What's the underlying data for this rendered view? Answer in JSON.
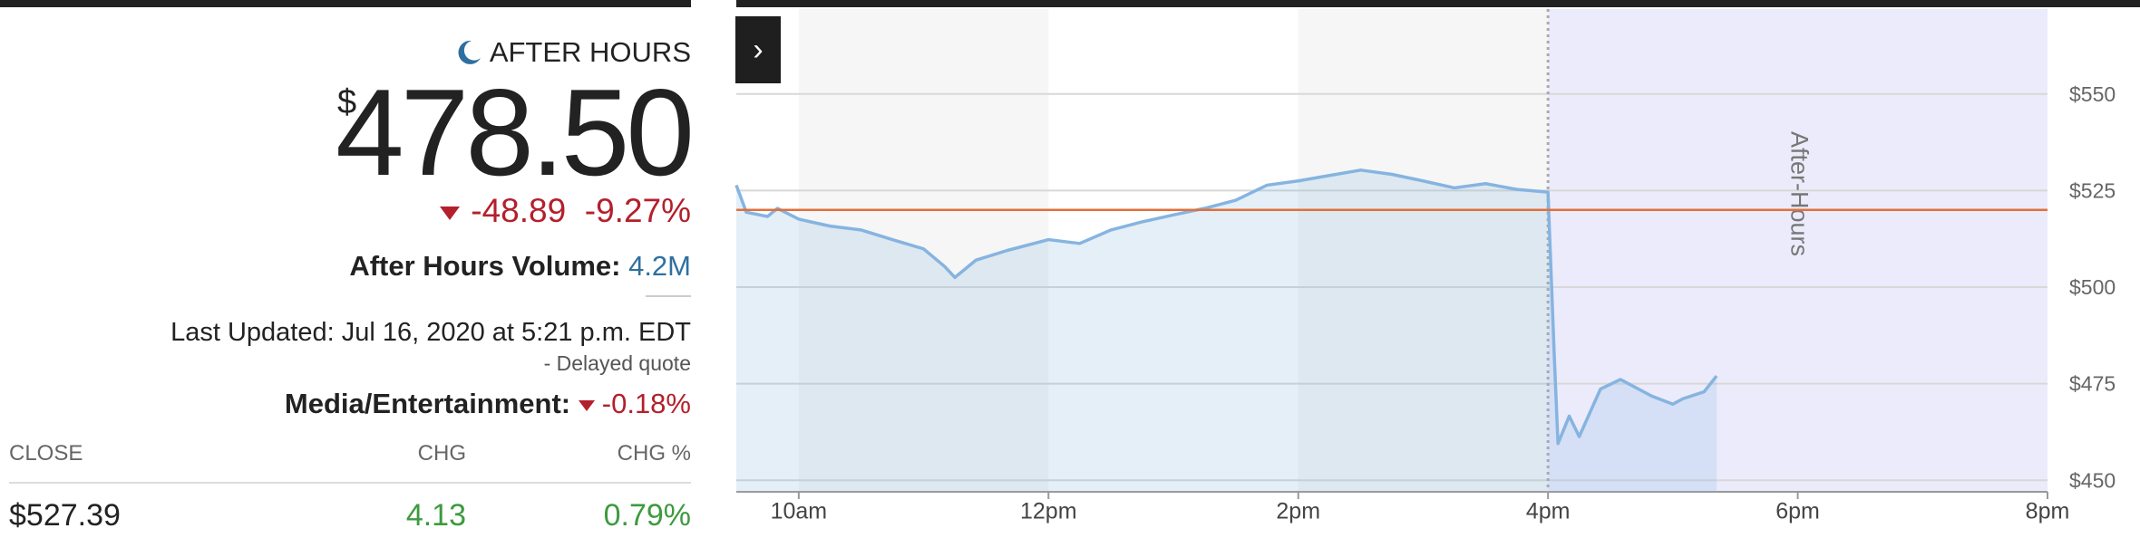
{
  "quote": {
    "session_label": "AFTER HOURS",
    "currency_symbol": "$",
    "price": "478.50",
    "change": "-48.89",
    "change_percent": "-9.27%",
    "volume_label": "After Hours Volume:",
    "volume": "4.2M",
    "last_updated": "Last Updated: Jul 16, 2020 at 5:21 p.m. EDT",
    "delayed_note": "-  Delayed quote",
    "sector_label": "Media/Entertainment:",
    "sector_change": "-0.18%"
  },
  "table": {
    "headers": [
      "CLOSE",
      "CHG",
      "CHG %"
    ],
    "rows": [
      [
        "$527.39",
        "4.13",
        "0.79%"
      ]
    ]
  },
  "chart_data": {
    "type": "line",
    "x": [
      9.5,
      9.58,
      9.75,
      9.83,
      10,
      10.25,
      10.5,
      10.75,
      11,
      11.17,
      11.25,
      11.42,
      11.67,
      12,
      12.25,
      12.5,
      12.75,
      13,
      13.25,
      13.5,
      13.75,
      14,
      14.25,
      14.5,
      14.75,
      15,
      15.25,
      15.5,
      15.75,
      16,
      16.05,
      16.08,
      16.17,
      16.25,
      16.42,
      16.58,
      16.83,
      17,
      17.08,
      17.25,
      17.35
    ],
    "series": [
      {
        "color": "#86b4e0",
        "values": [
          526.4,
          519.4,
          518.3,
          520.4,
          517.6,
          515.8,
          514.8,
          512.3,
          509.9,
          505.3,
          502.5,
          507.0,
          509.5,
          512.3,
          511.3,
          514.8,
          516.9,
          518.7,
          520.4,
          522.5,
          526.4,
          527.5,
          528.9,
          530.3,
          529.2,
          527.5,
          525.7,
          526.8,
          525.3,
          524.6,
          482.4,
          459.5,
          466.6,
          461.3,
          473.6,
          476.1,
          471.8,
          469.7,
          471.1,
          472.9,
          477.0
        ]
      }
    ],
    "xlim": [
      9.5,
      20
    ],
    "ylim": [
      447,
      572
    ],
    "xticks": [
      {
        "value": 10,
        "label": "10am"
      },
      {
        "value": 12,
        "label": "12pm"
      },
      {
        "value": 14,
        "label": "2pm"
      },
      {
        "value": 16,
        "label": "4pm"
      },
      {
        "value": 18,
        "label": "6pm"
      },
      {
        "value": 20,
        "label": "8pm"
      }
    ],
    "yticks": [
      {
        "value": 450,
        "label": "$450"
      },
      {
        "value": 475,
        "label": "$475"
      },
      {
        "value": 500,
        "label": "$500"
      },
      {
        "value": 525,
        "label": "$525"
      },
      {
        "value": 550,
        "label": "$550"
      }
    ],
    "reference_line": 520,
    "reference_color": "#e0703a",
    "annotation": "After-Hours",
    "grid": true
  }
}
